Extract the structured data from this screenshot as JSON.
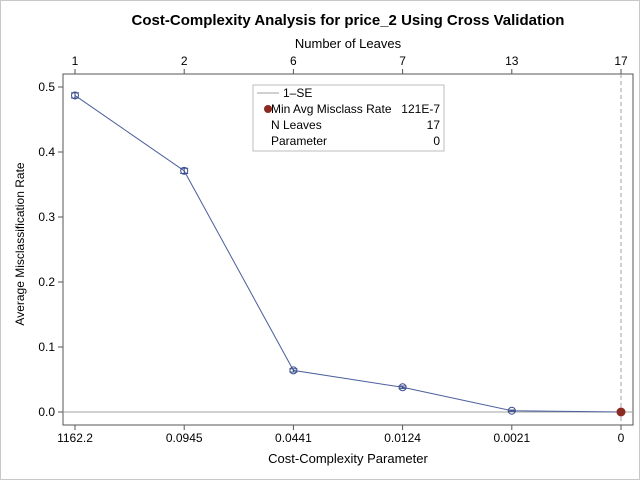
{
  "chart_data": {
    "type": "line",
    "title": "Cost-Complexity Analysis for price_2 Using Cross Validation",
    "xlabel": "Cost-Complexity Parameter",
    "x2label": "Number of Leaves",
    "ylabel": "Average Misclassification Rate",
    "categories": [
      "1162.2",
      "0.0945",
      "0.0441",
      "0.0124",
      "0.0021",
      "0"
    ],
    "top_categories": [
      "1",
      "2",
      "6",
      "7",
      "13",
      "17"
    ],
    "y_ticks": [
      "0.0",
      "0.1",
      "0.2",
      "0.3",
      "0.4",
      "0.5"
    ],
    "ylim": [
      0,
      0.5
    ],
    "series": [
      {
        "values": [
          0.487,
          0.371,
          0.064,
          0.038,
          0.002,
          0.0
        ],
        "se": [
          0.004,
          0.004,
          0.0025,
          0.002,
          0.001,
          0.0
        ]
      }
    ],
    "selected_index": 5,
    "reference_line_x_index": 5,
    "colors": {
      "series": "#4a5f9c",
      "marker": "#3c4f8c",
      "selected": "#8b2a23",
      "reference": "#a0a0a0",
      "axis": "#555555"
    },
    "legend": {
      "placement": "top-center",
      "entries": [
        {
          "label": "1–SE",
          "value": ""
        },
        {
          "label": "Min Avg Misclass Rate",
          "value": "121E-7"
        },
        {
          "label": "N Leaves",
          "value": "17"
        },
        {
          "label": "Parameter",
          "value": "0"
        }
      ]
    }
  }
}
